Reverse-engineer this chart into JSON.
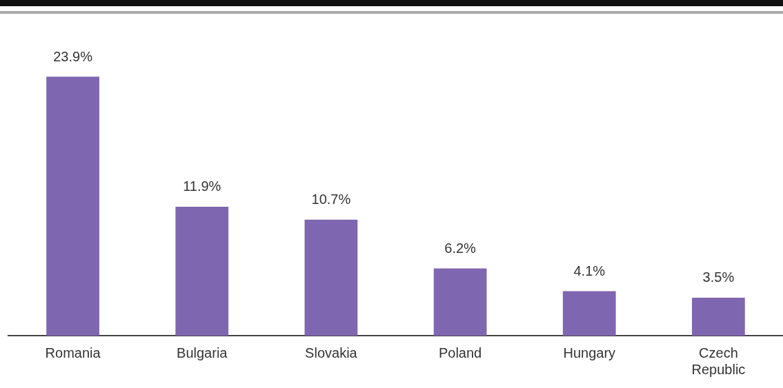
{
  "chart_data": {
    "type": "bar",
    "categories": [
      "Romania",
      "Bulgaria",
      "Slovakia",
      "Poland",
      "Hungary",
      "Czech Republic"
    ],
    "values": [
      23.9,
      11.9,
      10.7,
      6.2,
      4.1,
      3.5
    ],
    "value_labels": [
      "23.9%",
      "11.9%",
      "10.7%",
      "6.2%",
      "4.1%",
      "3.5%"
    ],
    "color": "#7f66b0"
  }
}
